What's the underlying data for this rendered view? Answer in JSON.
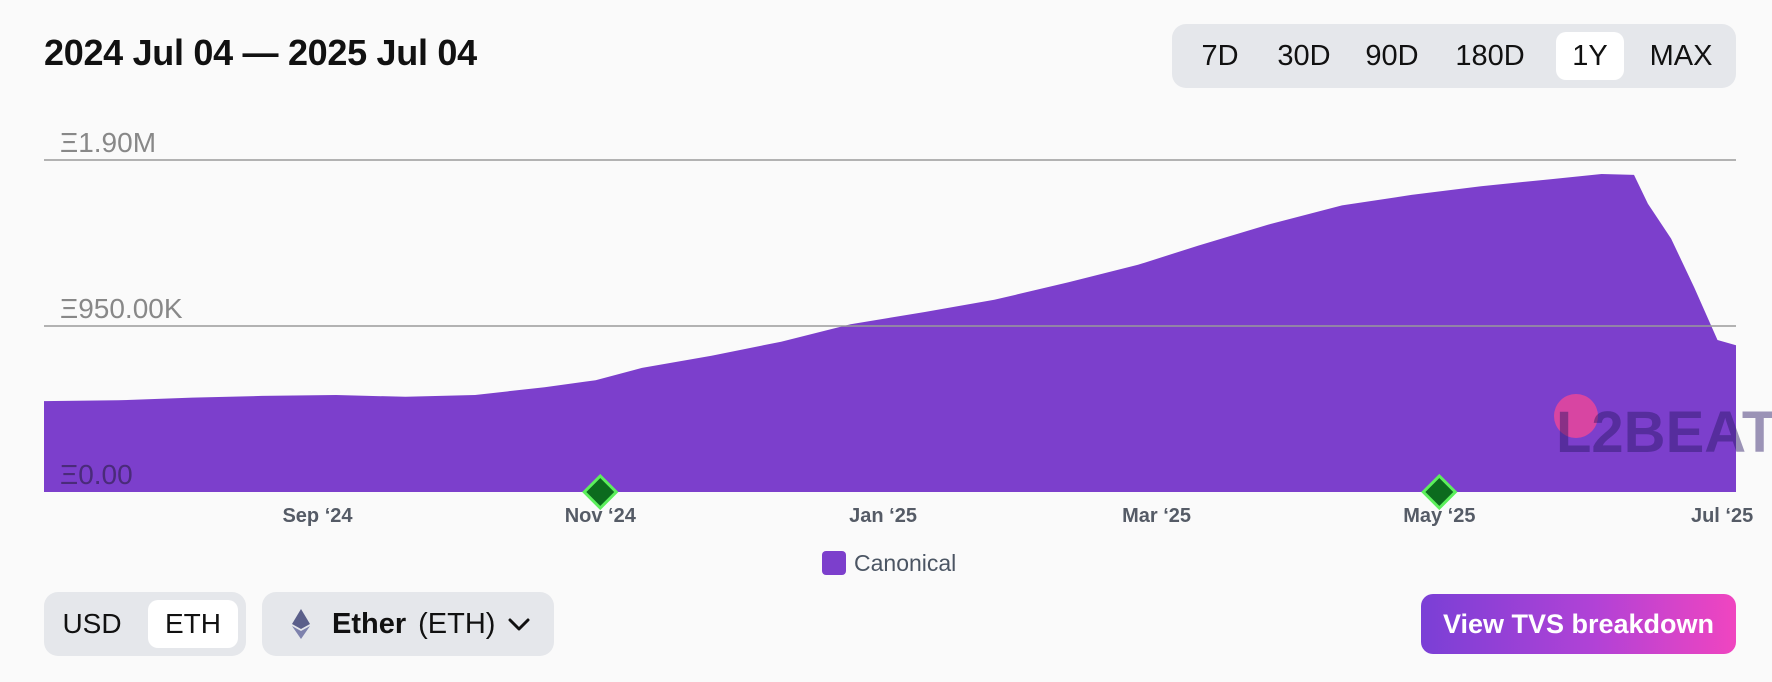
{
  "header": {
    "title": "2024 Jul 04 — 2025 Jul 04",
    "ranges": [
      "7D",
      "30D",
      "90D",
      "180D",
      "1Y",
      "MAX"
    ],
    "active_range": "1Y"
  },
  "chart_data": {
    "type": "area",
    "title": "2024 Jul 04 — 2025 Jul 04",
    "y_unit": "ETH",
    "y_ticks": [
      {
        "value": 0,
        "label": "Ξ0.00"
      },
      {
        "value": 950000,
        "label": "Ξ950.00K"
      },
      {
        "value": 1900000,
        "label": "Ξ1.90M"
      }
    ],
    "ylim": [
      0,
      1900000
    ],
    "x_ticks": [
      "Sep ‘24",
      "Nov ‘24",
      "Jan ‘25",
      "Mar ‘25",
      "May ‘25",
      "Jul ‘25"
    ],
    "x_range": [
      "2024-07-04",
      "2025-07-04"
    ],
    "grid": true,
    "legend": "bottom-center",
    "series": [
      {
        "name": "Canonical",
        "color": "#7c3fcc",
        "points": [
          [
            "2024-07-04",
            520000
          ],
          [
            "2024-07-20",
            525000
          ],
          [
            "2024-08-05",
            540000
          ],
          [
            "2024-08-20",
            550000
          ],
          [
            "2024-09-05",
            555000
          ],
          [
            "2024-09-20",
            545000
          ],
          [
            "2024-10-05",
            555000
          ],
          [
            "2024-10-20",
            600000
          ],
          [
            "2024-10-31",
            640000
          ],
          [
            "2024-11-10",
            710000
          ],
          [
            "2024-11-25",
            780000
          ],
          [
            "2024-12-10",
            860000
          ],
          [
            "2024-12-25",
            960000
          ],
          [
            "2025-01-10",
            1030000
          ],
          [
            "2025-01-25",
            1100000
          ],
          [
            "2025-02-10",
            1200000
          ],
          [
            "2025-02-25",
            1300000
          ],
          [
            "2025-03-10",
            1410000
          ],
          [
            "2025-03-25",
            1530000
          ],
          [
            "2025-04-10",
            1640000
          ],
          [
            "2025-04-25",
            1700000
          ],
          [
            "2025-05-10",
            1750000
          ],
          [
            "2025-05-25",
            1790000
          ],
          [
            "2025-06-05",
            1820000
          ],
          [
            "2025-06-12",
            1815000
          ],
          [
            "2025-06-15",
            1650000
          ],
          [
            "2025-06-20",
            1450000
          ],
          [
            "2025-06-25",
            1170000
          ],
          [
            "2025-06-30",
            870000
          ],
          [
            "2025-07-04",
            840000
          ]
        ]
      }
    ],
    "annotations": [
      {
        "date": "2024-11-01",
        "type": "event-marker",
        "color": "#1fa83a"
      },
      {
        "date": "2025-05-01",
        "type": "event-marker",
        "color": "#1fa83a"
      }
    ]
  },
  "legend": {
    "items": [
      {
        "label": "Canonical",
        "color": "#7c3fcc"
      }
    ]
  },
  "watermark": "L2BEAT",
  "controls": {
    "units": [
      "USD",
      "ETH"
    ],
    "active_unit": "ETH",
    "token": {
      "name": "Ether",
      "symbol": "(ETH)",
      "icon": "ethereum-icon"
    },
    "cta": "View TVS breakdown"
  },
  "colors": {
    "accent": "#7c3fcc",
    "marker": "#1fa83a",
    "cta_gradient": [
      "#7a3fd6",
      "#f045c0"
    ]
  }
}
